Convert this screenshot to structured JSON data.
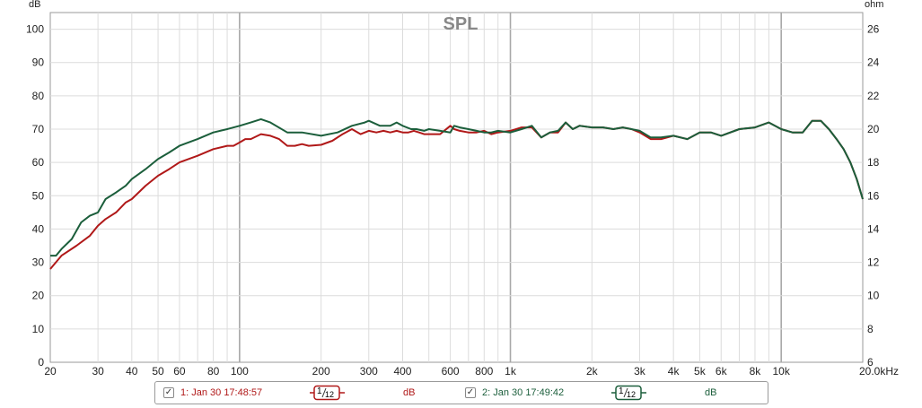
{
  "chart_data": {
    "type": "line",
    "title": "SPL",
    "ylabel": "dB",
    "y2label": "ohm",
    "xscale": "log",
    "xlim": [
      20,
      20000
    ],
    "ylim": [
      0,
      105
    ],
    "y2lim": [
      6,
      27
    ],
    "grid": true,
    "xticks": [
      {
        "v": 20,
        "label": "20"
      },
      {
        "v": 30,
        "label": "30"
      },
      {
        "v": 40,
        "label": "40"
      },
      {
        "v": 50,
        "label": "50"
      },
      {
        "v": 60,
        "label": "60"
      },
      {
        "v": 80,
        "label": "80"
      },
      {
        "v": 100,
        "label": "100"
      },
      {
        "v": 200,
        "label": "200"
      },
      {
        "v": 300,
        "label": "300"
      },
      {
        "v": 400,
        "label": "400"
      },
      {
        "v": 600,
        "label": "600"
      },
      {
        "v": 800,
        "label": "800"
      },
      {
        "v": 1000,
        "label": "1k"
      },
      {
        "v": 2000,
        "label": "2k"
      },
      {
        "v": 3000,
        "label": "3k"
      },
      {
        "v": 4000,
        "label": "4k"
      },
      {
        "v": 5000,
        "label": "5k"
      },
      {
        "v": 6000,
        "label": "6k"
      },
      {
        "v": 8000,
        "label": "8k"
      },
      {
        "v": 10000,
        "label": "10k"
      },
      {
        "v": 20000,
        "label": "20.0kHz"
      }
    ],
    "yticks": [
      "0",
      "10",
      "20",
      "30",
      "40",
      "50",
      "60",
      "70",
      "80",
      "90",
      "100"
    ],
    "y2ticks": [
      "6",
      "8",
      "10",
      "12",
      "14",
      "16",
      "18",
      "20",
      "22",
      "24",
      "26"
    ],
    "series": [
      {
        "name": "1: Jan 30 17:48:57",
        "color": "#b01818",
        "x": [
          20,
          22,
          25,
          28,
          30,
          32,
          35,
          38,
          40,
          45,
          50,
          55,
          60,
          70,
          80,
          90,
          95,
          100,
          105,
          110,
          120,
          130,
          140,
          150,
          160,
          170,
          180,
          200,
          220,
          240,
          260,
          280,
          300,
          320,
          340,
          360,
          380,
          400,
          420,
          440,
          460,
          480,
          500,
          550,
          600,
          620,
          650,
          700,
          750,
          800,
          850,
          900,
          1000,
          1100,
          1200,
          1300,
          1400,
          1500,
          1600,
          1700,
          1800,
          2000,
          2200,
          2400,
          2600,
          2800,
          3000,
          3300,
          3600,
          4000,
          4500,
          5000,
          5500,
          6000,
          7000,
          8000,
          9000,
          10000,
          11000,
          12000,
          13000,
          14000,
          15000,
          16000,
          17000,
          18000,
          19000,
          20000
        ],
        "y": [
          28,
          32,
          35,
          38,
          41,
          43,
          45,
          48,
          49,
          53,
          56,
          58,
          60,
          62,
          64,
          65,
          65,
          66,
          67,
          67,
          68.5,
          68,
          67,
          65,
          65,
          65.5,
          65,
          65.3,
          66.5,
          68.5,
          70,
          68.5,
          69.5,
          69,
          69.5,
          69,
          69.5,
          69,
          69,
          69.5,
          69,
          68.5,
          68.5,
          68.5,
          71,
          70,
          69.5,
          69,
          69,
          69.5,
          68.5,
          69,
          69.5,
          70.5,
          70.5,
          67.5,
          69,
          69,
          72,
          70,
          71,
          70.5,
          70.5,
          70,
          70.5,
          70,
          69,
          67,
          67,
          68,
          67,
          69,
          69,
          68,
          70,
          70.5,
          72,
          70,
          69,
          69,
          72.5,
          72.5,
          70,
          67,
          64,
          60,
          55,
          49
        ]
      },
      {
        "name": "2: Jan 30 17:49:42",
        "color": "#1b5e3b",
        "x": [
          20,
          21,
          22,
          24,
          26,
          28,
          30,
          32,
          35,
          38,
          40,
          45,
          50,
          55,
          60,
          70,
          80,
          90,
          100,
          110,
          120,
          130,
          150,
          170,
          200,
          230,
          260,
          290,
          300,
          330,
          360,
          380,
          400,
          430,
          450,
          480,
          500,
          550,
          600,
          620,
          650,
          700,
          750,
          800,
          850,
          900,
          1000,
          1100,
          1200,
          1300,
          1400,
          1500,
          1600,
          1700,
          1800,
          2000,
          2200,
          2400,
          2600,
          2800,
          3000,
          3300,
          3600,
          4000,
          4500,
          5000,
          5500,
          6000,
          7000,
          8000,
          9000,
          10000,
          11000,
          12000,
          13000,
          14000,
          15000,
          16000,
          17000,
          18000,
          19000,
          20000
        ],
        "y": [
          32,
          32,
          34,
          37,
          42,
          44,
          45,
          49,
          51,
          53,
          55,
          58,
          61,
          63,
          65,
          67,
          69,
          70,
          71,
          72,
          73,
          72,
          69,
          69,
          68,
          69,
          71,
          72,
          72.5,
          71,
          71,
          72,
          71,
          70,
          70,
          69.5,
          70,
          69.5,
          69,
          71,
          70.5,
          70,
          69.5,
          69,
          69,
          69.5,
          69,
          70,
          71,
          67.5,
          69,
          69.5,
          72,
          70,
          71,
          70.5,
          70.5,
          70,
          70.5,
          70,
          69.5,
          67.5,
          67.5,
          68,
          67,
          69,
          69,
          68,
          70,
          70.5,
          72,
          70,
          69,
          69,
          72.5,
          72.5,
          70,
          67,
          64,
          60,
          55,
          49
        ]
      }
    ]
  },
  "legend": {
    "entries": [
      {
        "name": "1: Jan 30 17:48:57",
        "checked": true,
        "smoothing_num": "1",
        "smoothing_den": "12",
        "unit": "dB",
        "color": "#b01818"
      },
      {
        "name": "2: Jan 30 17:49:42",
        "checked": true,
        "smoothing_num": "1",
        "smoothing_den": "12",
        "unit": "dB",
        "color": "#1b5e3b"
      }
    ]
  }
}
